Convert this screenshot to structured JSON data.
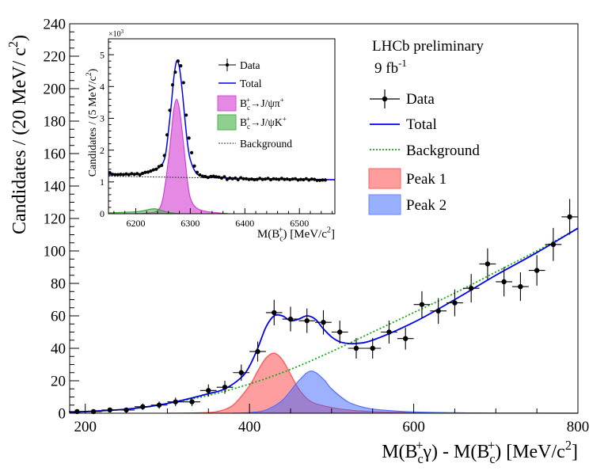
{
  "chart_data": [
    {
      "type": "scatter",
      "title": "",
      "xlabel": "M(B_c^+γ) - M(B_c^+) [MeV/c^2]",
      "ylabel": "Candidates / (20 MeV/ c^2)",
      "xlim": [
        181,
        800
      ],
      "ylim": [
        0,
        240
      ],
      "x_ticks": [
        200,
        400,
        600,
        800
      ],
      "y_ticks": [
        0,
        20,
        40,
        60,
        80,
        100,
        120,
        140,
        160,
        180,
        200,
        220,
        240
      ],
      "grid": false,
      "legend_placement": "top-right",
      "annotations": [
        "LHCb preliminary",
        "9 fb^-1"
      ],
      "legend": [
        {
          "name": "Data",
          "style": "marker",
          "color": "#000000"
        },
        {
          "name": "Total",
          "style": "line",
          "color": "#0000ee"
        },
        {
          "name": "Background",
          "style": "dotted",
          "color": "#11aa11"
        },
        {
          "name": "Peak 1",
          "style": "fill",
          "color": "#ff6060"
        },
        {
          "name": "Peak 2",
          "style": "fill",
          "color": "#6688ff"
        }
      ],
      "data": {
        "x": [
          190,
          210,
          230,
          250,
          270,
          290,
          310,
          330,
          350,
          370,
          390,
          410,
          430,
          450,
          470,
          490,
          510,
          530,
          550,
          570,
          590,
          610,
          630,
          650,
          670,
          690,
          710,
          730,
          750,
          770,
          790
        ],
        "y": [
          1,
          1,
          2,
          2,
          4,
          5,
          7,
          7,
          14,
          16,
          25,
          38,
          62,
          58,
          57,
          56,
          50,
          40,
          40,
          50,
          46,
          67,
          63,
          68,
          77,
          92,
          81,
          78,
          88,
          104,
          121
        ],
        "x_err": 10
      },
      "curves": {
        "total": [
          [
            181,
            0.5
          ],
          [
            250,
            2.5
          ],
          [
            300,
            6
          ],
          [
            350,
            12
          ],
          [
            370,
            15
          ],
          [
            390,
            22
          ],
          [
            400,
            29
          ],
          [
            410,
            40
          ],
          [
            420,
            53
          ],
          [
            430,
            60
          ],
          [
            440,
            60
          ],
          [
            450,
            57
          ],
          [
            460,
            58
          ],
          [
            470,
            60
          ],
          [
            480,
            58
          ],
          [
            490,
            52
          ],
          [
            500,
            47
          ],
          [
            510,
            44
          ],
          [
            520,
            43
          ],
          [
            530,
            43
          ],
          [
            550,
            45
          ],
          [
            600,
            56
          ],
          [
            650,
            70
          ],
          [
            700,
            85
          ],
          [
            750,
            99
          ],
          [
            800,
            114
          ]
        ],
        "background": [
          [
            181,
            0.6
          ],
          [
            250,
            2.5
          ],
          [
            300,
            6
          ],
          [
            350,
            11
          ],
          [
            400,
            18
          ],
          [
            450,
            27
          ],
          [
            500,
            38
          ],
          [
            550,
            50
          ],
          [
            600,
            62
          ],
          [
            650,
            74
          ],
          [
            700,
            87
          ],
          [
            750,
            100
          ],
          [
            800,
            114
          ]
        ],
        "peak1": [
          [
            300,
            0
          ],
          [
            340,
            0.3
          ],
          [
            360,
            1
          ],
          [
            380,
            5
          ],
          [
            400,
            17
          ],
          [
            410,
            26
          ],
          [
            420,
            34
          ],
          [
            430,
            37
          ],
          [
            440,
            33
          ],
          [
            450,
            24
          ],
          [
            460,
            15
          ],
          [
            470,
            9
          ],
          [
            480,
            6
          ],
          [
            500,
            3.5
          ],
          [
            520,
            2
          ],
          [
            550,
            1
          ],
          [
            600,
            0.4
          ],
          [
            700,
            0.1
          ],
          [
            800,
            0
          ]
        ],
        "peak2": [
          [
            380,
            0
          ],
          [
            400,
            0.4
          ],
          [
            420,
            2
          ],
          [
            440,
            8
          ],
          [
            460,
            20
          ],
          [
            475,
            26
          ],
          [
            490,
            21
          ],
          [
            500,
            15
          ],
          [
            520,
            7
          ],
          [
            540,
            3.5
          ],
          [
            560,
            2
          ],
          [
            600,
            0.8
          ],
          [
            650,
            0.3
          ],
          [
            700,
            0.1
          ],
          [
            800,
            0
          ]
        ]
      }
    },
    {
      "type": "scatter",
      "title": "",
      "xlabel": "M(B_c^+)  [MeV/c^2]",
      "ylabel": "Candidates / (5 MeV/c^2)",
      "y_multiplier": "×10^3",
      "xlim": [
        6150,
        6565
      ],
      "ylim": [
        0,
        5.5
      ],
      "x_ticks": [
        6200,
        6300,
        6400,
        6500
      ],
      "y_ticks": [
        0,
        1,
        2,
        3,
        4,
        5
      ],
      "grid": false,
      "legend_placement": "top-right",
      "legend": [
        {
          "name": "Data",
          "style": "marker",
          "color": "#000000"
        },
        {
          "name": "Total",
          "style": "line",
          "color": "#0000ee"
        },
        {
          "name": "B_c^+→J/ψπ^+",
          "style": "fill",
          "color": "#e080e0"
        },
        {
          "name": "B_c^+→J/ψK^+",
          "style": "fill",
          "color": "#80c880"
        },
        {
          "name": "Background",
          "style": "dashed",
          "color": "#333333"
        }
      ],
      "data": {
        "x_start": 6152.5,
        "x_step": 5,
        "y": [
          1.29,
          1.24,
          1.23,
          1.23,
          1.24,
          1.23,
          1.25,
          1.23,
          1.26,
          1.24,
          1.26,
          1.22,
          1.27,
          1.3,
          1.31,
          1.34,
          1.38,
          1.4,
          1.48,
          1.52,
          1.83,
          2.48,
          3.25,
          4.05,
          4.45,
          4.8,
          4.65,
          4.12,
          3.1,
          2.38,
          1.92,
          1.5,
          1.3,
          1.22,
          1.18,
          1.17,
          1.14,
          1.17,
          1.18,
          1.16,
          1.15,
          1.12,
          1.16,
          1.08,
          1.12,
          1.1,
          1.12,
          1.07,
          1.13,
          1.1,
          1.1,
          1.08,
          1.09,
          1.07,
          1.08,
          1.11,
          1.08,
          1.09,
          1.11,
          1.07,
          1.1,
          1.09,
          1.08,
          1.11,
          1.08,
          1.09,
          1.07,
          1.09,
          1.1,
          1.06,
          1.08,
          1.07,
          1.1,
          1.06,
          1.09,
          1.08,
          1.05,
          1.05,
          1.06,
          1.06
        ]
      },
      "curves": {
        "total": [
          [
            6150,
            1.24
          ],
          [
            6200,
            1.25
          ],
          [
            6220,
            1.3
          ],
          [
            6240,
            1.42
          ],
          [
            6250,
            1.6
          ],
          [
            6255,
            1.9
          ],
          [
            6260,
            2.6
          ],
          [
            6265,
            3.4
          ],
          [
            6270,
            4.3
          ],
          [
            6275,
            4.8
          ],
          [
            6280,
            4.6
          ],
          [
            6285,
            3.9
          ],
          [
            6290,
            3.0
          ],
          [
            6295,
            2.2
          ],
          [
            6300,
            1.7
          ],
          [
            6310,
            1.3
          ],
          [
            6320,
            1.2
          ],
          [
            6350,
            1.14
          ],
          [
            6450,
            1.09
          ],
          [
            6565,
            1.07
          ]
        ],
        "background": [
          [
            6150,
            1.18
          ],
          [
            6565,
            1.06
          ]
        ],
        "pi": [
          [
            6200,
            0
          ],
          [
            6220,
            0.02
          ],
          [
            6240,
            0.1
          ],
          [
            6250,
            0.5
          ],
          [
            6260,
            1.7
          ],
          [
            6265,
            2.5
          ],
          [
            6270,
            3.3
          ],
          [
            6275,
            3.6
          ],
          [
            6280,
            3.3
          ],
          [
            6285,
            2.6
          ],
          [
            6290,
            1.8
          ],
          [
            6295,
            1.0
          ],
          [
            6300,
            0.5
          ],
          [
            6310,
            0.2
          ],
          [
            6330,
            0.07
          ],
          [
            6370,
            0
          ]
        ],
        "k": [
          [
            6150,
            0.03
          ],
          [
            6200,
            0.06
          ],
          [
            6230,
            0.15
          ],
          [
            6240,
            0.14
          ],
          [
            6260,
            0.04
          ],
          [
            6280,
            0
          ]
        ]
      }
    }
  ]
}
